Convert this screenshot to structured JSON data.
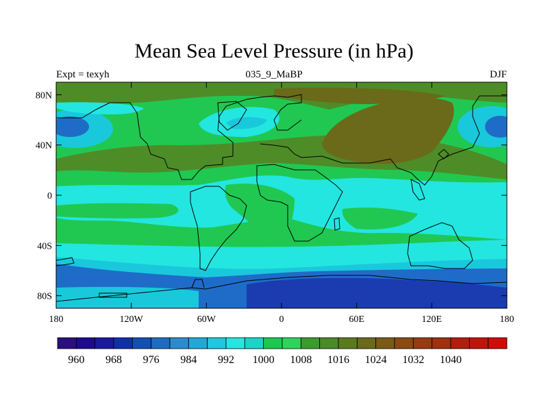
{
  "title": "Mean Sea Level Pressure (in hPa)",
  "subtitle_left": "Expt = texyh",
  "subtitle_center": "035_9_MaBP",
  "subtitle_right": "DJF",
  "x_ticks": [
    "180",
    "120W",
    "60W",
    "0",
    "60E",
    "120E",
    "180"
  ],
  "y_ticks": [
    "80N",
    "40N",
    "0",
    "40S",
    "80S"
  ],
  "colorbar": {
    "labels": [
      "960",
      "968",
      "976",
      "984",
      "992",
      "1000",
      "1008",
      "1016",
      "1024",
      "1032",
      "1040"
    ],
    "colors": [
      "#2a0f80",
      "#1e0a8c",
      "#1a1a9c",
      "#1030a8",
      "#1350b4",
      "#1c6cc0",
      "#2a8ccc",
      "#22a8d8",
      "#1ec8e0",
      "#25e6e0",
      "#19d5c8",
      "#1ec850",
      "#2ed45a",
      "#3a9c2a",
      "#4a8a28",
      "#5a7a1e",
      "#6a6a1a",
      "#7a5a14",
      "#8a4a12",
      "#963c10",
      "#a0300e",
      "#b01e0c",
      "#c0140a",
      "#d20a08"
    ]
  },
  "map_colors": {
    "ocean_low": "#1e6cc8",
    "deep_low": "#1a3cb0",
    "cyan": "#23e6e0",
    "light_cyan": "#1ac8dc",
    "green": "#20c852",
    "olive": "#4e8c28",
    "brown": "#6a6a1a"
  }
}
